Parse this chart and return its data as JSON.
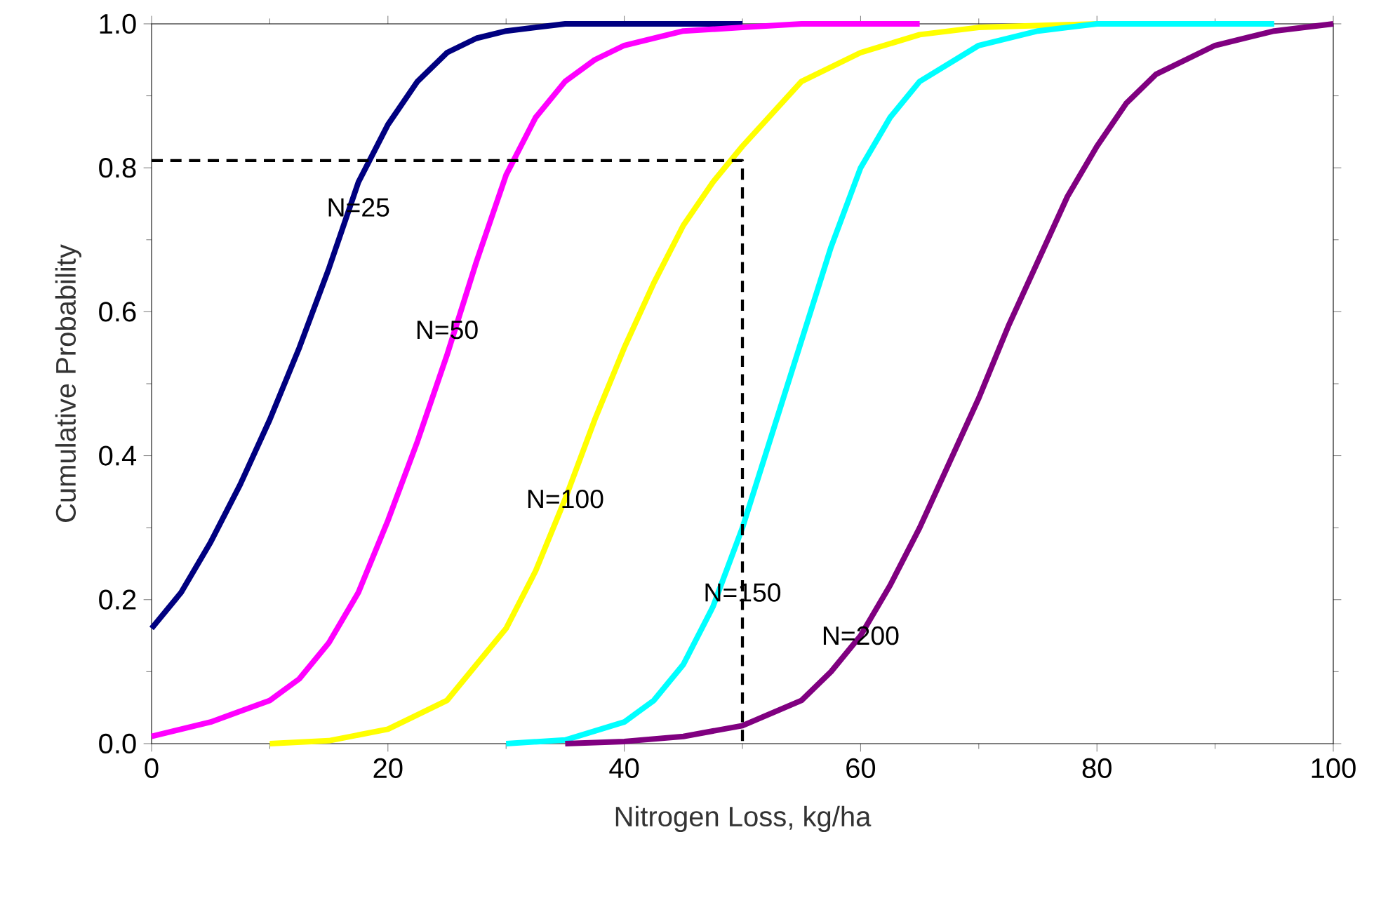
{
  "chart_data": {
    "type": "line",
    "xlabel": "Nitrogen Loss, kg/ha",
    "ylabel": "Cumulative Probability",
    "xlim": [
      0,
      100
    ],
    "ylim": [
      0,
      1
    ],
    "xticks": [
      0,
      20,
      40,
      60,
      80,
      100
    ],
    "yticks": [
      {
        "value": 0,
        "label": "0.0"
      },
      {
        "value": 0.2,
        "label": "0.2"
      },
      {
        "value": 0.4,
        "label": "0.4"
      },
      {
        "value": 0.6,
        "label": "0.6"
      },
      {
        "value": 0.8,
        "label": "0.8"
      },
      {
        "value": 1,
        "label": "1.0"
      }
    ],
    "grid": false,
    "marker": "none",
    "line_style": "solid",
    "series": [
      {
        "color": "#000080",
        "x": [
          0,
          2.5,
          5,
          7.5,
          10,
          12.5,
          15,
          17.5,
          20,
          22.5,
          25,
          27.5,
          30,
          35,
          40,
          50
        ],
        "values": [
          0.16,
          0.21,
          0.28,
          0.36,
          0.45,
          0.55,
          0.66,
          0.78,
          0.86,
          0.92,
          0.96,
          0.98,
          0.99,
          1.0,
          1.0,
          1.0
        ]
      },
      {
        "color": "#ff00ff",
        "x": [
          0,
          5,
          10,
          12.5,
          15,
          17.5,
          20,
          22.5,
          25,
          27.5,
          30,
          32.5,
          35,
          37.5,
          40,
          45,
          50,
          55,
          65
        ],
        "values": [
          0.01,
          0.03,
          0.06,
          0.09,
          0.14,
          0.21,
          0.31,
          0.42,
          0.54,
          0.67,
          0.79,
          0.87,
          0.92,
          0.95,
          0.97,
          0.99,
          0.995,
          1.0,
          1.0
        ]
      },
      {
        "color": "#ffff00",
        "x": [
          10,
          15,
          20,
          25,
          30,
          32.5,
          35,
          37.5,
          40,
          42.5,
          45,
          47.5,
          50,
          55,
          60,
          65,
          70,
          80
        ],
        "values": [
          0.0,
          0.004,
          0.02,
          0.06,
          0.16,
          0.24,
          0.34,
          0.45,
          0.55,
          0.64,
          0.72,
          0.78,
          0.83,
          0.92,
          0.96,
          0.985,
          0.995,
          1.0
        ]
      },
      {
        "color": "#00ffff",
        "x": [
          30,
          35,
          40,
          42.5,
          45,
          47.5,
          50,
          52.5,
          55,
          57.5,
          60,
          62.5,
          65,
          70,
          75,
          80,
          95
        ],
        "values": [
          0.0,
          0.005,
          0.03,
          0.06,
          0.11,
          0.19,
          0.3,
          0.43,
          0.56,
          0.69,
          0.8,
          0.87,
          0.92,
          0.97,
          0.99,
          1.0,
          1.0
        ]
      },
      {
        "color": "#800080",
        "x": [
          35,
          40,
          45,
          50,
          55,
          57.5,
          60,
          62.5,
          65,
          67.5,
          70,
          72.5,
          75,
          77.5,
          80,
          82.5,
          85,
          90,
          95,
          100
        ],
        "values": [
          0.0,
          0.003,
          0.01,
          0.025,
          0.06,
          0.1,
          0.15,
          0.22,
          0.3,
          0.39,
          0.48,
          0.58,
          0.67,
          0.76,
          0.83,
          0.89,
          0.93,
          0.97,
          0.99,
          1.0
        ]
      },
      {
        "color": "#000000",
        "line_style": "dashed",
        "x": [
          0,
          50,
          50
        ],
        "values": [
          0.81,
          0.81,
          0
        ]
      }
    ],
    "annotations": [
      {
        "text": "N=25",
        "x": 17.5,
        "y": 0.745
      },
      {
        "text": "N=50",
        "x": 25,
        "y": 0.575
      },
      {
        "text": "N=100",
        "x": 35,
        "y": 0.34
      },
      {
        "text": "N=150",
        "x": 50,
        "y": 0.21
      },
      {
        "text": "N=200",
        "x": 60,
        "y": 0.15
      }
    ]
  }
}
